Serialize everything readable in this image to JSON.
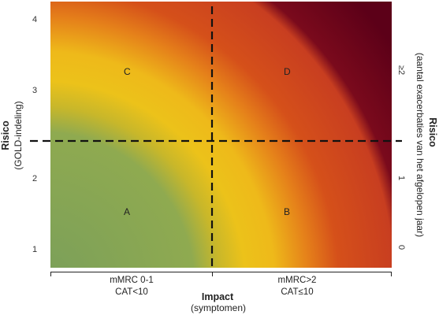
{
  "chart_data": {
    "type": "heatmap",
    "left_axis": {
      "title": "Risico",
      "subtitle": "(GOLD-indeling)",
      "ticks": [
        "1",
        "2",
        "3",
        "4"
      ]
    },
    "right_axis": {
      "title": "Risico",
      "subtitle": "(aantal exacerbaties van het afgelopen jaar)",
      "ticks": [
        "0",
        "1",
        "≥2"
      ]
    },
    "x_axis": {
      "title": "Impact",
      "subtitle": "(symptomen)",
      "categories": [
        {
          "line1": "mMRC 0-1",
          "line2": "CAT<10"
        },
        {
          "line1": "mMRC>2",
          "line2": "CAT≤10"
        }
      ]
    },
    "quadrants": [
      {
        "label": "A",
        "position": "bottom-left"
      },
      {
        "label": "B",
        "position": "bottom-right"
      },
      {
        "label": "C",
        "position": "top-left"
      },
      {
        "label": "D",
        "position": "top-right"
      }
    ],
    "gradient_colors": [
      "#7a9f5a",
      "#9cb04a",
      "#ecc21a",
      "#e8a015",
      "#d0441a",
      "#c83e20",
      "#5c0018"
    ],
    "dividers": "dashed"
  }
}
